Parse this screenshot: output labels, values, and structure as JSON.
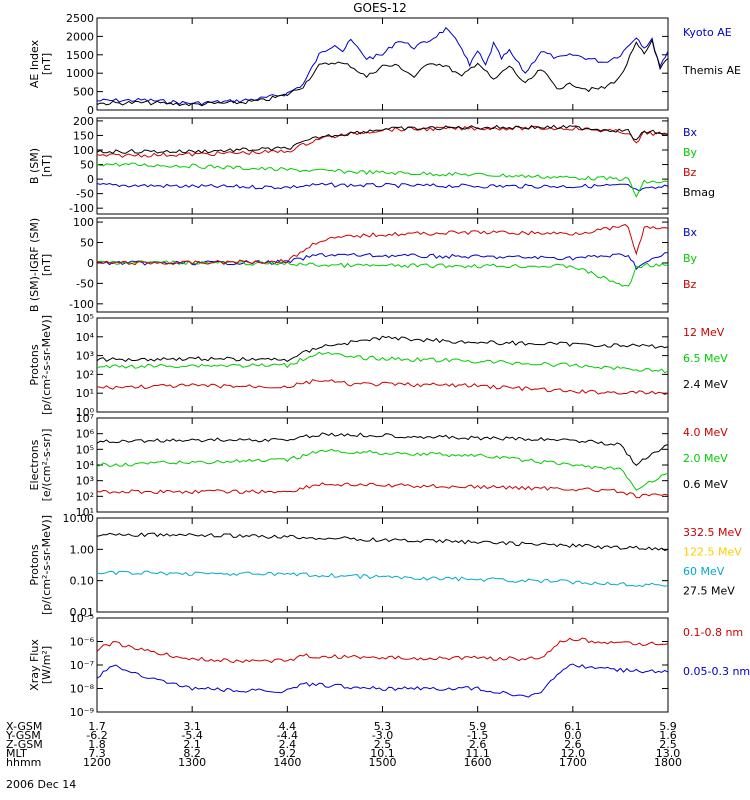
{
  "chart_data": {
    "type": "line",
    "title": "GOES-12",
    "date_label": "2006 Dec 14",
    "x_domain": [
      1200,
      1800
    ],
    "footer": {
      "row_labels": [
        "X-GSM",
        "Y-GSM",
        "Z-GSM",
        "MLT",
        "hhmm"
      ],
      "columns": [
        {
          "x": 1200,
          "values": [
            "1.7",
            "-6.2",
            "1.8",
            "7.3",
            "1200"
          ]
        },
        {
          "x": 1300,
          "values": [
            "3.1",
            "-5.4",
            "2.1",
            "8.2",
            "1300"
          ]
        },
        {
          "x": 1400,
          "values": [
            "4.4",
            "-4.4",
            "2.4",
            "9.2",
            "1400"
          ]
        },
        {
          "x": 1500,
          "values": [
            "5.3",
            "-3.0",
            "2.5",
            "10.1",
            "1500"
          ]
        },
        {
          "x": 1600,
          "values": [
            "5.9",
            "-1.5",
            "2.6",
            "11.1",
            "1600"
          ]
        },
        {
          "x": 1700,
          "values": [
            "6.1",
            "0.0",
            "2.6",
            "12.0",
            "1700"
          ]
        },
        {
          "x": 1800,
          "values": [
            "5.9",
            "1.6",
            "2.5",
            "13.0",
            "1800"
          ]
        }
      ]
    },
    "panels": [
      {
        "id": "ae",
        "ylabel": [
          "AE Index",
          "[nT]"
        ],
        "yscale": "linear",
        "ylim": [
          0,
          2500
        ],
        "ticks": [
          {
            "v": 0,
            "label": "0"
          },
          {
            "v": 500,
            "label": "500"
          },
          {
            "v": 1000,
            "label": "1000"
          },
          {
            "v": 1500,
            "label": "1500"
          },
          {
            "v": 2000,
            "label": "2000"
          },
          {
            "v": 2500,
            "label": "2500"
          }
        ],
        "series": [
          {
            "name": "Kyoto AE",
            "color": "#0000cc",
            "x": [
              1200,
              1230,
              1300,
              1330,
              1345,
              1400,
              1410,
              1420,
              1430,
              1435,
              1440,
              1450,
              1500,
              1510,
              1520,
              1530,
              1540,
              1550,
              1555,
              1600,
              1605,
              1610,
              1615,
              1620,
              1630,
              1640,
              1650,
              1700,
              1710,
              1720,
              1730,
              1740,
              1745,
              1750,
              1755,
              1800
            ],
            "y": [
              250,
              270,
              180,
              250,
              320,
              450,
              700,
              1500,
              1800,
              1600,
              1900,
              1400,
              1500,
              1900,
              1700,
              1900,
              2200,
              1700,
              1200,
              1600,
              1200,
              1800,
              1400,
              1600,
              1000,
              1600,
              1400,
              1500,
              1400,
              1300,
              1500,
              2000,
              1700,
              1900,
              1200,
              1600
            ]
          },
          {
            "name": "Themis AE",
            "color": "#000000",
            "x": [
              1200,
              1230,
              1300,
              1330,
              1345,
              1400,
              1410,
              1420,
              1430,
              1440,
              1450,
              1500,
              1510,
              1520,
              1530,
              1540,
              1550,
              1600,
              1610,
              1620,
              1630,
              1640,
              1650,
              1700,
              1710,
              1720,
              1730,
              1740,
              1745,
              1750,
              1755,
              1800
            ],
            "y": [
              180,
              200,
              150,
              200,
              260,
              420,
              650,
              1200,
              1300,
              1200,
              900,
              1200,
              1200,
              900,
              1300,
              1200,
              900,
              1300,
              800,
              1200,
              700,
              1100,
              600,
              700,
              550,
              600,
              900,
              1800,
              1500,
              1900,
              1100,
              1400
            ]
          }
        ]
      },
      {
        "id": "bsm",
        "ylabel": [
          "B (SM)",
          "[nT]"
        ],
        "yscale": "linear",
        "ylim": [
          -120,
          210
        ],
        "ticks": [
          {
            "v": -100,
            "label": "-100"
          },
          {
            "v": -50,
            "label": "-50"
          },
          {
            "v": 0,
            "label": "0"
          },
          {
            "v": 50,
            "label": "50"
          },
          {
            "v": 100,
            "label": "100"
          },
          {
            "v": 150,
            "label": "150"
          },
          {
            "v": 200,
            "label": "200"
          }
        ],
        "series": [
          {
            "name": "Bx",
            "color": "#0000cc",
            "x": [
              1200,
              1300,
              1400,
              1420,
              1500,
              1600,
              1700,
              1735,
              1740,
              1800
            ],
            "y": [
              -20,
              -25,
              -28,
              -20,
              -22,
              -24,
              -25,
              -22,
              -40,
              -25
            ]
          },
          {
            "name": "By",
            "color": "#00cc00",
            "x": [
              1200,
              1300,
              1400,
              1500,
              1600,
              1700,
              1735,
              1740,
              1745,
              1800
            ],
            "y": [
              52,
              45,
              32,
              22,
              15,
              5,
              0,
              -60,
              -10,
              -10
            ]
          },
          {
            "name": "Bz",
            "color": "#cc0000",
            "x": [
              1200,
              1300,
              1400,
              1420,
              1440,
              1500,
              1600,
              1700,
              1735,
              1740,
              1745,
              1800
            ],
            "y": [
              80,
              85,
              95,
              140,
              155,
              170,
              175,
              175,
              160,
              120,
              160,
              150
            ]
          },
          {
            "name": "Bmag",
            "color": "#000000",
            "x": [
              1200,
              1300,
              1400,
              1420,
              1440,
              1500,
              1600,
              1700,
              1735,
              1740,
              1745,
              1800
            ],
            "y": [
              95,
              95,
              105,
              145,
              158,
              172,
              178,
              178,
              165,
              130,
              165,
              155
            ]
          }
        ]
      },
      {
        "id": "bigrf",
        "ylabel": [
          "B (SM)-IGRF (SM)",
          "[nT]"
        ],
        "yscale": "linear",
        "ylim": [
          -120,
          110
        ],
        "ticks": [
          {
            "v": -100,
            "label": "-100"
          },
          {
            "v": -50,
            "label": "-50"
          },
          {
            "v": 0,
            "label": "0"
          },
          {
            "v": 50,
            "label": "50"
          },
          {
            "v": 100,
            "label": "100"
          }
        ],
        "series": [
          {
            "name": "Bx",
            "color": "#0000cc",
            "x": [
              1200,
              1300,
              1400,
              1420,
              1500,
              1600,
              1700,
              1735,
              1740,
              1800
            ],
            "y": [
              0,
              0,
              2,
              20,
              18,
              15,
              12,
              20,
              -10,
              25
            ]
          },
          {
            "name": "By",
            "color": "#00cc00",
            "x": [
              1200,
              1300,
              1400,
              1420,
              1500,
              1600,
              1700,
              1735,
              1740,
              1745,
              1800
            ],
            "y": [
              2,
              1,
              -2,
              -5,
              -7,
              -7,
              -8,
              -60,
              -10,
              -5,
              -5
            ]
          },
          {
            "name": "Bz",
            "color": "#cc0000",
            "x": [
              1200,
              1300,
              1400,
              1420,
              1440,
              1500,
              1600,
              1700,
              1735,
              1740,
              1745,
              1800
            ],
            "y": [
              0,
              0,
              5,
              55,
              65,
              70,
              75,
              72,
              90,
              20,
              85,
              85
            ]
          }
        ]
      },
      {
        "id": "protons",
        "ylabel": [
          "Protons",
          "[p/(cm²-s-sr-MeV)]"
        ],
        "yscale": "log",
        "ylim": [
          1,
          100000
        ],
        "ticks": [
          {
            "v": 1,
            "label": "10⁰"
          },
          {
            "v": 10,
            "label": "10¹"
          },
          {
            "v": 100,
            "label": "10²"
          },
          {
            "v": 1000,
            "label": "10³"
          },
          {
            "v": 10000,
            "label": "10⁴"
          },
          {
            "v": 100000,
            "label": "10⁵"
          }
        ],
        "series": [
          {
            "name": "12 MeV",
            "color": "#cc0000",
            "x": [
              1200,
              1300,
              1400,
              1420,
              1440,
              1500,
              1600,
              1700,
              1800
            ],
            "y": [
              20,
              25,
              22,
              50,
              30,
              30,
              25,
              12,
              10
            ]
          },
          {
            "name": "6.5 MeV",
            "color": "#00cc00",
            "x": [
              1200,
              1300,
              1400,
              1420,
              1440,
              1500,
              1600,
              1700,
              1800
            ],
            "y": [
              250,
              300,
              300,
              1500,
              800,
              700,
              500,
              300,
              150
            ]
          },
          {
            "name": "2.4 MeV",
            "color": "#000000",
            "x": [
              1200,
              1300,
              1400,
              1420,
              1440,
              1500,
              1600,
              1700,
              1800
            ],
            "y": [
              600,
              700,
              600,
              3000,
              5000,
              9000,
              5000,
              4000,
              3000
            ]
          }
        ]
      },
      {
        "id": "electrons",
        "ylabel": [
          "Electrons",
          "[e/(cm²-s-sr)]"
        ],
        "yscale": "log",
        "ylim": [
          10,
          10000000
        ],
        "ticks": [
          {
            "v": 10,
            "label": "10¹"
          },
          {
            "v": 100,
            "label": "10²"
          },
          {
            "v": 1000,
            "label": "10³"
          },
          {
            "v": 10000,
            "label": "10⁴"
          },
          {
            "v": 100000,
            "label": "10⁵"
          },
          {
            "v": 1000000,
            "label": "10⁶"
          },
          {
            "v": 10000000,
            "label": "10⁷"
          }
        ],
        "series": [
          {
            "name": "4.0 MeV",
            "color": "#cc0000",
            "x": [
              1200,
              1300,
              1400,
              1420,
              1500,
              1600,
              1700,
              1730,
              1740,
              1800
            ],
            "y": [
              200,
              200,
              200,
              600,
              500,
              400,
              300,
              200,
              100,
              120
            ]
          },
          {
            "name": "2.0 MeV",
            "color": "#00cc00",
            "x": [
              1200,
              1300,
              1400,
              1420,
              1500,
              1600,
              1700,
              1730,
              1740,
              1800
            ],
            "y": [
              10000,
              15000,
              20000,
              80000,
              60000,
              40000,
              10000,
              5000,
              300,
              3000
            ]
          },
          {
            "name": "0.6 MeV",
            "color": "#000000",
            "x": [
              1200,
              1300,
              1400,
              1420,
              1500,
              1600,
              1700,
              1730,
              1740,
              1800
            ],
            "y": [
              300000,
              400000,
              400000,
              900000,
              800000,
              500000,
              400000,
              200000,
              10000,
              200000
            ]
          }
        ]
      },
      {
        "id": "hiprotons",
        "ylabel": [
          "Protons",
          "[p/(cm²-s-sr-MeV)]"
        ],
        "yscale": "log",
        "ylim": [
          0.01,
          10
        ],
        "ticks": [
          {
            "v": 0.01,
            "label": "0.01"
          },
          {
            "v": 0.1,
            "label": "0.10"
          },
          {
            "v": 1,
            "label": "1.00"
          },
          {
            "v": 10,
            "label": "10.00"
          }
        ],
        "series": [
          {
            "name": "332.5 MeV",
            "color": "#cc0000",
            "x": [],
            "y": []
          },
          {
            "name": "122.5 MeV",
            "color": "#ffcc00",
            "x": [],
            "y": []
          },
          {
            "name": "60 MeV",
            "color": "#00aacc",
            "x": [
              1200,
              1300,
              1400,
              1500,
              1600,
              1700,
              1800
            ],
            "y": [
              0.18,
              0.17,
              0.16,
              0.13,
              0.11,
              0.09,
              0.07
            ]
          },
          {
            "name": "27.5 MeV",
            "color": "#000000",
            "x": [
              1200,
              1300,
              1400,
              1500,
              1600,
              1700,
              1800
            ],
            "y": [
              3.0,
              2.8,
              2.5,
              2.0,
              1.7,
              1.3,
              1.0
            ]
          }
        ]
      },
      {
        "id": "xray",
        "ylabel": [
          "Xray Flux",
          "[W/m²]"
        ],
        "yscale": "log",
        "ylim": [
          1e-09,
          1e-05
        ],
        "ticks": [
          {
            "v": 1e-09,
            "label": "10⁻⁹"
          },
          {
            "v": 1e-08,
            "label": "10⁻⁸"
          },
          {
            "v": 1e-07,
            "label": "10⁻⁷"
          },
          {
            "v": 1e-06,
            "label": "10⁻⁶"
          },
          {
            "v": 1e-05,
            "label": "10⁻⁵"
          }
        ],
        "series": [
          {
            "name": "0.1-0.8 nm",
            "color": "#cc0000",
            "x": [
              1200,
              1210,
              1230,
              1300,
              1330,
              1400,
              1410,
              1500,
              1600,
              1630,
              1640,
              1650,
              1700,
              1730,
              1800
            ],
            "y": [
              4.5e-07,
              9e-07,
              4e-07,
              1.8e-07,
              1.5e-07,
              1.5e-07,
              2.5e-07,
              2e-07,
              2e-07,
              1.8e-07,
              2e-07,
              8e-07,
              1.3e-06,
              8e-07,
              8e-07
            ]
          },
          {
            "name": "0.05-0.3 nm",
            "color": "#0000cc",
            "x": [
              1200,
              1210,
              1230,
              1300,
              1330,
              1400,
              1410,
              1500,
              1600,
              1620,
              1630,
              1640,
              1650,
              1700,
              1730,
              1800
            ],
            "y": [
              3e-08,
              1e-07,
              3e-08,
              1e-08,
              8e-09,
              8e-09,
              1.5e-08,
              1e-08,
              1e-08,
              6e-09,
              5e-09,
              6e-09,
              4e-08,
              1e-07,
              6e-08,
              5e-08
            ]
          }
        ]
      }
    ]
  }
}
